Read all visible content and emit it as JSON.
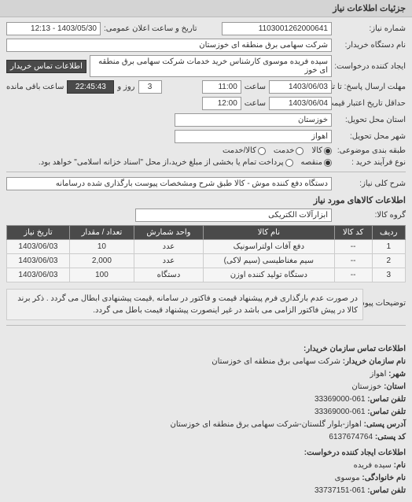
{
  "header": "جزئیات اطلاعات نیاز",
  "need_number_label": "شماره نیاز:",
  "need_number": "1103001262000641",
  "announce_label": "تاریخ و ساعت اعلان عمومی:",
  "announce_value": "1403/05/30 - 12:13",
  "buyer_org_label": "نام دستگاه خریدار:",
  "buyer_org": "شرکت سهامی برق منطقه ای خوزستان",
  "creator_label": "ایجاد کننده درخواست:",
  "creator": "سیده فریده موسوی کارشناس خرید خدمات شرکت سهامی برق منطقه ای خوز",
  "creator_btn": "اطلاعات تماس خریدار",
  "deadline_send_label": "مهلت ارسال پاسخ: تا تاریخ:",
  "deadline_send_date": "1403/06/03",
  "time_label": "ساعت",
  "deadline_send_time": "11:00",
  "days_left_lbl": "روز و",
  "days_left": "3",
  "remaining_time": "22:45:43",
  "remaining_lbl": "ساعت باقی مانده",
  "price_hist_label": "حداقل تاریخ اعتبار قیمت: تا تاریخ:",
  "price_hist_date": "1403/06/04",
  "price_hist_time": "12:00",
  "province_label": "استان محل تحویل:",
  "province": "خوزستان",
  "city_label": "شهر محل تحویل:",
  "city": "اهواز",
  "category_label": "طبقه بندی موضوعی:",
  "radios": {
    "kala": "کالا",
    "khadamat": "خدمت",
    "both": "کالا/خدمت"
  },
  "process_label": "نوع فرآیند خرید :",
  "radio_process": {
    "mo": "منقصه",
    "partial": "پرداخت تمام یا بخشی از مبلغ خرید،از محل \"اسناد خزانه اسلامی\" خواهد بود."
  },
  "key_label": "شرح کلی نیاز:",
  "key_value": "دستگاه دفع کننده موش - کالا طبق شرح ومشخصات پیوست بارگذاری شده درسامانه",
  "goods_section": "اطلاعات کالاهای مورد نیاز",
  "group_label": "گروه کالا:",
  "group_value": "ابزارآلات الکتریکی",
  "table": {
    "cols": [
      "ردیف",
      "کد کالا",
      "نام کالا",
      "واحد شمارش",
      "تعداد / مقدار",
      "تاریخ نیاز"
    ],
    "rows": [
      [
        "1",
        "--",
        "دفع آفات اولتراسونیک",
        "عدد",
        "10",
        "1403/06/03"
      ],
      [
        "2",
        "--",
        "سیم مغناطیسی (سیم لاکی)",
        "عدد",
        "2,000",
        "1403/06/03"
      ],
      [
        "3",
        "--",
        "دستگاه تولید کننده اوزن",
        "دستگاه",
        "100",
        "1403/06/03"
      ]
    ]
  },
  "note_label": "توضیحات پیوست:",
  "note": "در صورت عدم بارگذاری فرم پیشنهاد قیمت و فاکتور در سامانه ,قیمت پیشنهادی ابطال می گردد . ذکر برند کالا در پیش فاکتور الزامی می باشد در غیر اینصورت پیشنهاد قیمت باطل می گردد.",
  "contact_hdr": "اطلاعات تماس سازمان خریدار:",
  "c_org_lbl": "نام سازمان خریدار:",
  "c_org": "شرکت سهامی برق منطقه ای خوزستان",
  "c_city_lbl": "شهر:",
  "c_city": "اهواز",
  "c_prov_lbl": "استان:",
  "c_prov": "خوزستان",
  "c_tel_lbl": "تلفن تماس:",
  "c_tel": "061-33369000",
  "c_fax_lbl": "تلفن تماس:",
  "c_fax": "061-33369000",
  "c_addr_lbl": "آدرس پستی:",
  "c_addr": "اهواز-بلوار گلستان-شرکت سهامی برق منطقه ای خوزستان",
  "c_post_lbl": "کد پستی:",
  "c_post": "6137674764",
  "req_hdr": "اطلاعات ایجاد کننده درخواست:",
  "r_name_lbl": "نام:",
  "r_name": "سیده فریده",
  "r_fam_lbl": "نام خانوادگی:",
  "r_fam": "موسوی",
  "r_tel_lbl": "تلفن تماس:",
  "r_tel": "061-33737151"
}
